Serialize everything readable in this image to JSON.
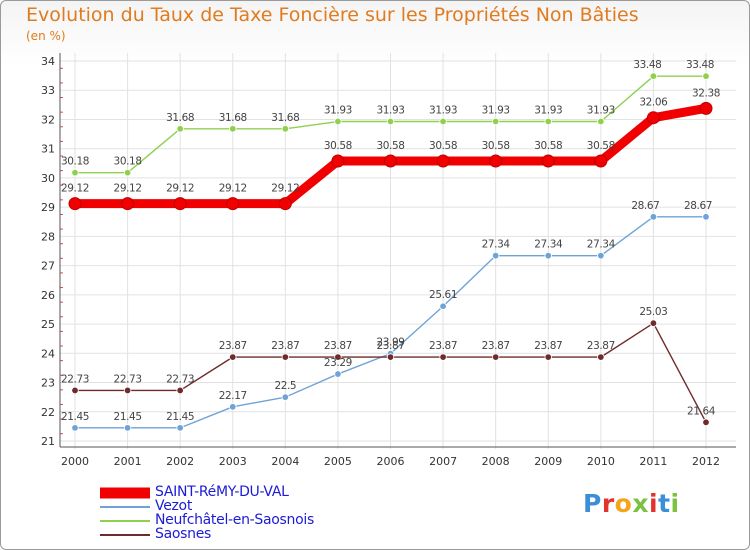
{
  "header": {
    "title": "Evolution du Taux de Taxe Foncière sur les Propriétés Non Bâties",
    "unit": "(en %)"
  },
  "chart_data": {
    "type": "line",
    "title": "Evolution du Taux de Taxe Foncière sur les Propriétés Non Bâties",
    "ylabel": "(en %)",
    "xlabel": "",
    "categories": [
      "2000",
      "2001",
      "2002",
      "2003",
      "2004",
      "2005",
      "2006",
      "2007",
      "2008",
      "2009",
      "2010",
      "2011",
      "2012"
    ],
    "ylim": [
      21,
      34
    ],
    "yticks": [
      21,
      22,
      23,
      24,
      25,
      26,
      27,
      28,
      29,
      30,
      31,
      32,
      33,
      34
    ],
    "grid": true,
    "legend_position": "bottom-left",
    "series": [
      {
        "name": "Neufchâtel-en-Saosnois",
        "color": "#8fd14f",
        "values": [
          30.18,
          30.18,
          31.68,
          31.68,
          31.68,
          31.93,
          31.93,
          31.93,
          31.93,
          31.93,
          31.93,
          33.48,
          33.48
        ],
        "labels": [
          "30.18",
          "30.18",
          "31.68",
          "31.68",
          "31.68",
          "31.93",
          "31.93",
          "31.93",
          "31.93",
          "31.93",
          "31.93",
          "33.48",
          "33.48"
        ]
      },
      {
        "name": "Vezot",
        "color": "#6fa3d8",
        "values": [
          21.45,
          21.45,
          21.45,
          22.17,
          22.5,
          23.29,
          23.99,
          25.61,
          27.34,
          27.34,
          27.34,
          28.67,
          28.67
        ],
        "labels": [
          "21.45",
          "21.45",
          "21.45",
          "22.17",
          "22.5",
          "23.29",
          "23.99",
          "25.61",
          "27.34",
          "27.34",
          "27.34",
          "28.67",
          "28.67"
        ]
      },
      {
        "name": "Saosnes",
        "color": "#6e2b2b",
        "values": [
          22.73,
          22.73,
          22.73,
          23.87,
          23.87,
          23.87,
          23.87,
          23.87,
          23.87,
          23.87,
          23.87,
          25.03,
          21.64
        ],
        "labels": [
          "22.73",
          "22.73",
          "22.73",
          "23.87",
          "23.87",
          "23.87",
          "23.87",
          "23.87",
          "23.87",
          "23.87",
          "23.87",
          "25.03",
          "21.64"
        ]
      },
      {
        "name": "SAINT-RéMY-DU-VAL",
        "color": "#f00000",
        "values": [
          29.12,
          29.12,
          29.12,
          29.12,
          29.12,
          30.58,
          30.58,
          30.58,
          30.58,
          30.58,
          30.58,
          32.06,
          32.38
        ],
        "labels": [
          "29.12",
          "29.12",
          "29.12",
          "29.12",
          "29.12",
          "30.58",
          "30.58",
          "30.58",
          "30.58",
          "30.58",
          "30.58",
          "32.06",
          "32.38"
        ]
      }
    ]
  },
  "legend": {
    "items": [
      {
        "label": "SAINT-RéMY-DU-VAL",
        "color": "#f00000"
      },
      {
        "label": "Vezot",
        "color": "#6fa3d8"
      },
      {
        "label": "Neufchâtel-en-Saosnois",
        "color": "#8fd14f"
      },
      {
        "label": "Saosnes",
        "color": "#6e2b2b"
      }
    ]
  },
  "logo": {
    "letters": [
      "P",
      "r",
      "o",
      "x",
      "i",
      "t",
      "i"
    ],
    "colors": [
      "#3b8fd6",
      "#e2342d",
      "#f4a51c",
      "#7cc242",
      "#e2342d",
      "#3b8fd6",
      "#7cc242"
    ]
  }
}
